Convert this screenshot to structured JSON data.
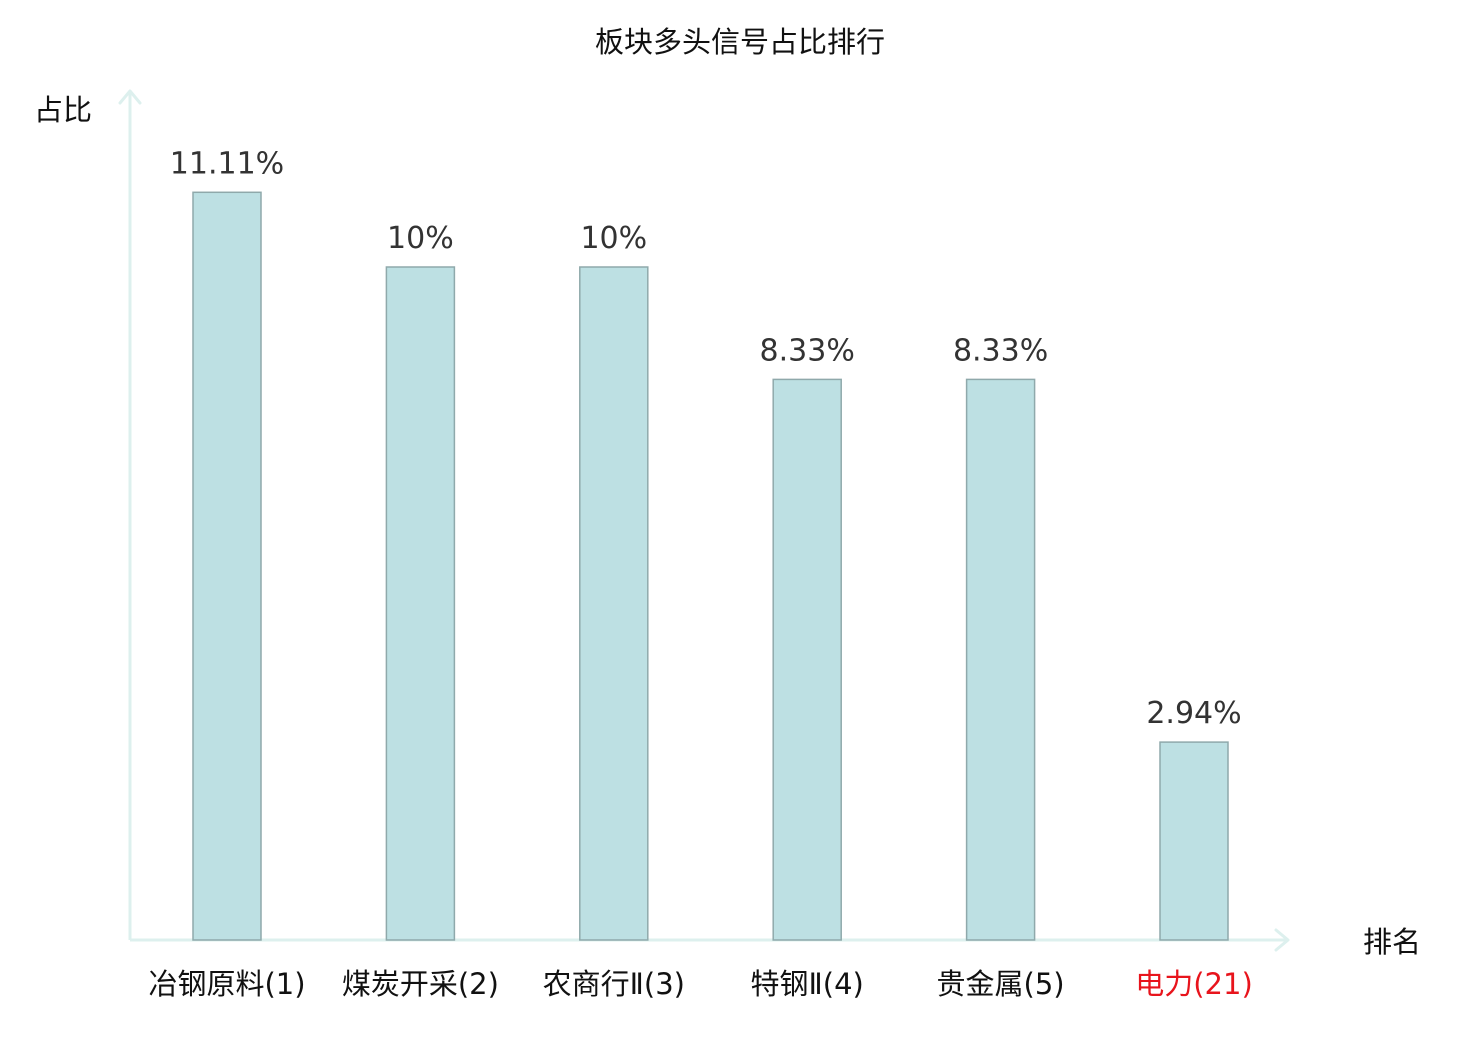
{
  "chart_data": {
    "type": "bar",
    "title": "板块多头信号占比排行",
    "ylabel": "占比",
    "xlabel": "排名",
    "categories": [
      "冶钢原料(1)",
      "煤炭开采(2)",
      "农商行Ⅱ(3)",
      "特钢Ⅱ(4)",
      "贵金属(5)",
      "电力(21)"
    ],
    "values": [
      11.11,
      10,
      10,
      8.33,
      8.33,
      2.94
    ],
    "value_labels": [
      "11.11%",
      "10%",
      "10%",
      "8.33%",
      "8.33%",
      "2.94%"
    ],
    "unit": "%",
    "ylim": [
      0,
      12.6
    ],
    "grid": false,
    "legend": "none",
    "highlight_category": "电力(21)",
    "colors": {
      "bar_fill": "#bde0e3",
      "bar_stroke": "#8fa9ab",
      "axis": "#ddf0ee",
      "text": "#111111",
      "value_label": "#333333",
      "highlight": "#e8141c"
    }
  }
}
